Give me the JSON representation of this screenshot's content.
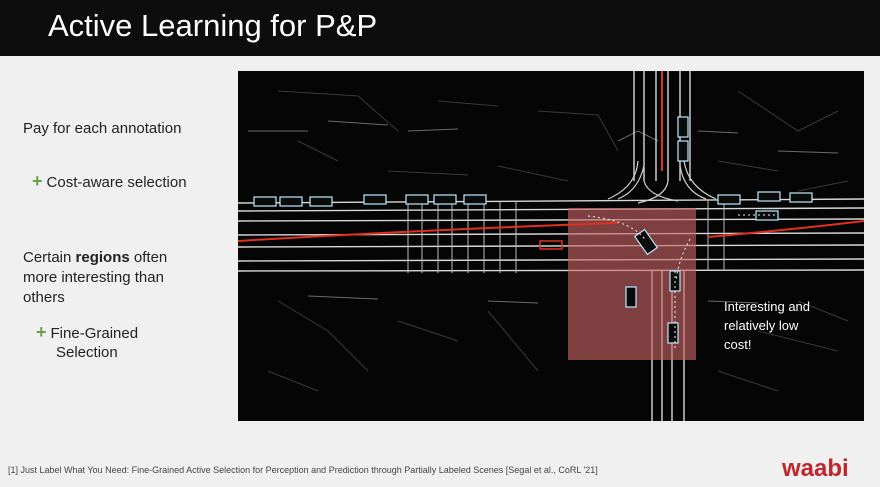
{
  "slide": {
    "title": "Active Learning for P&P",
    "bullets": {
      "pay": "Pay for each annotation",
      "cost_aware": "Cost-aware selection",
      "regions_prefix": "Certain ",
      "regions_bold": "regions",
      "regions_suffix": " often",
      "regions_line2": "more interesting than",
      "regions_line3": "others",
      "fine_grained_1": "Fine-Grained",
      "fine_grained_2": "Selection"
    },
    "annotation": {
      "line1": "Interesting and",
      "line2": "relatively low",
      "line3": "cost!"
    },
    "footnote": "[1] Just Label What You Need: Fine-Grained Active Selection for Perception and Prediction through Partially Labeled Scenes [Segal et al., CoRL '21]",
    "logo_text": "waabi",
    "colors": {
      "accent_green": "#6aa04a",
      "logo_red": "#c2242c",
      "highlight": "#c86464",
      "trajectory_red": "#e0301e"
    },
    "icons": {
      "plus": "plus-icon",
      "logo": "waabi-logo"
    }
  }
}
